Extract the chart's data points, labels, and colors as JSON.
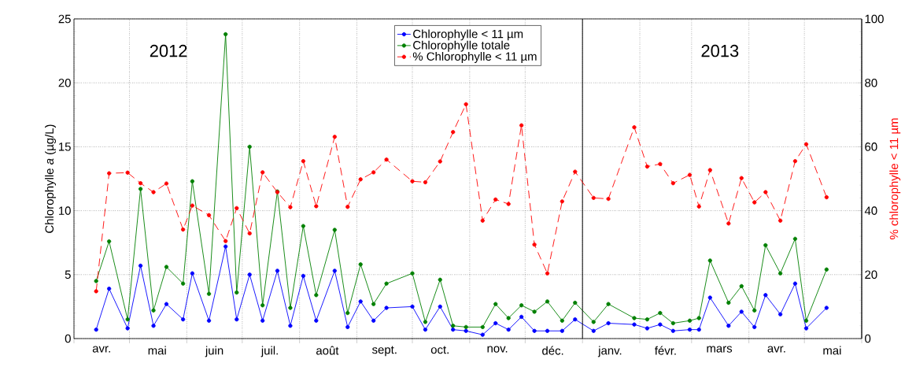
{
  "chart_data": {
    "type": "line",
    "ylabel": "Chlorophylle *a* (µg/L)",
    "y2label": "% chlorophylle < 11 µm",
    "annotations": [
      "2012",
      "2013"
    ],
    "x": [
      "2012-04-13",
      "2012-04-20",
      "2012-04-30",
      "2012-05-07",
      "2012-05-14",
      "2012-05-21",
      "2012-05-30",
      "2012-06-04",
      "2012-06-13",
      "2012-06-22",
      "2012-06-28",
      "2012-07-05",
      "2012-07-12",
      "2012-07-20",
      "2012-07-27",
      "2012-08-03",
      "2012-08-10",
      "2012-08-20",
      "2012-08-27",
      "2012-09-03",
      "2012-09-10",
      "2012-09-17",
      "2012-10-01",
      "2012-10-08",
      "2012-10-16",
      "2012-10-23",
      "2012-10-30",
      "2012-11-08",
      "2012-11-15",
      "2012-11-22",
      "2012-11-29",
      "2012-12-06",
      "2012-12-13",
      "2012-12-21",
      "2012-12-28",
      "2013-01-07",
      "2013-01-15",
      "2013-01-29",
      "2013-02-05",
      "2013-02-12",
      "2013-02-19",
      "2013-02-28",
      "2013-03-05",
      "2013-03-11",
      "2013-03-21",
      "2013-03-28",
      "2013-04-04",
      "2013-04-10",
      "2013-04-18",
      "2013-04-26",
      "2013-05-02",
      "2013-05-13"
    ],
    "series": [
      {
        "name": "Chlorophylle  < 11 µm",
        "color": "#0000ff",
        "values": [
          0.7,
          3.9,
          0.8,
          5.7,
          1.0,
          2.7,
          1.5,
          5.1,
          1.4,
          7.2,
          1.5,
          5.0,
          1.4,
          5.3,
          1.0,
          4.9,
          1.4,
          5.3,
          0.9,
          2.9,
          1.4,
          2.4,
          2.5,
          0.7,
          2.5,
          0.7,
          0.6,
          0.3,
          1.2,
          0.7,
          1.7,
          0.6,
          0.6,
          0.6,
          1.5,
          0.6,
          1.2,
          1.1,
          0.8,
          1.1,
          0.6,
          0.7,
          0.7,
          3.2,
          1.0,
          2.1,
          0.9,
          3.4,
          1.9,
          4.3,
          0.8,
          2.4
        ]
      },
      {
        "name": "Chlorophylle totale",
        "color": "#008000",
        "values": [
          4.5,
          7.6,
          1.5,
          11.7,
          2.2,
          5.6,
          4.3,
          12.3,
          3.5,
          23.8,
          3.6,
          15.0,
          2.6,
          11.5,
          2.4,
          8.8,
          3.4,
          8.5,
          2.0,
          5.8,
          2.7,
          4.3,
          5.1,
          1.3,
          4.6,
          1.0,
          0.9,
          0.9,
          2.7,
          1.6,
          2.6,
          2.1,
          2.9,
          1.4,
          2.8,
          1.3,
          2.7,
          1.6,
          1.5,
          2.0,
          1.2,
          1.4,
          1.6,
          6.1,
          2.8,
          4.1,
          2.2,
          7.3,
          5.1,
          7.8,
          1.4,
          5.4
        ]
      },
      {
        "name": "% Chlorophylle < 11 µm",
        "color": "#ff0000",
        "axis": "y2",
        "line_style": "dashed",
        "values": [
          14.8,
          51.7,
          51.9,
          48.6,
          45.8,
          48.5,
          34.1,
          41.6,
          38.6,
          30.5,
          40.8,
          32.9,
          52.0,
          45.8,
          41.1,
          55.5,
          41.4,
          63.1,
          41.2,
          49.8,
          52.0,
          56.0,
          49.2,
          48.9,
          55.4,
          64.6,
          73.3,
          36.9,
          43.5,
          42.1,
          66.7,
          29.4,
          20.4,
          42.9,
          52.2,
          44.0,
          43.7,
          66.1,
          53.8,
          54.6,
          48.6,
          51.2,
          41.3,
          52.7,
          36.0,
          50.2,
          42.6,
          45.8,
          36.9,
          55.5,
          60.8,
          44.2
        ]
      }
    ],
    "xlim": [
      "2012-04-01",
      "2013-06-01"
    ],
    "xticks": [
      {
        "value": "2012-04-01",
        "label": null
      },
      {
        "value": "2012-04-16",
        "label": "avr."
      },
      {
        "value": "2012-05-01",
        "label": null
      },
      {
        "value": "2012-05-16",
        "label": "mai"
      },
      {
        "value": "2012-06-01",
        "label": null
      },
      {
        "value": "2012-06-16",
        "label": "juin"
      },
      {
        "value": "2012-07-01",
        "label": null
      },
      {
        "value": "2012-07-16",
        "label": "juil."
      },
      {
        "value": "2012-08-01",
        "label": null
      },
      {
        "value": "2012-08-16",
        "label": "août"
      },
      {
        "value": "2012-09-01",
        "label": null
      },
      {
        "value": "2012-09-16",
        "label": "sept."
      },
      {
        "value": "2012-10-01",
        "label": null
      },
      {
        "value": "2012-10-16",
        "label": "oct."
      },
      {
        "value": "2012-11-01",
        "label": null
      },
      {
        "value": "2012-11-16",
        "label": "nov."
      },
      {
        "value": "2012-12-01",
        "label": null
      },
      {
        "value": "2012-12-16",
        "label": "déc."
      },
      {
        "value": "2013-01-01",
        "label": null
      },
      {
        "value": "2013-01-16",
        "label": "janv."
      },
      {
        "value": "2013-02-01",
        "label": null
      },
      {
        "value": "2013-02-15",
        "label": "févr."
      },
      {
        "value": "2013-03-01",
        "label": null
      },
      {
        "value": "2013-03-16",
        "label": "mars"
      },
      {
        "value": "2013-04-01",
        "label": null
      },
      {
        "value": "2013-04-16",
        "label": "avr."
      },
      {
        "value": "2013-05-01",
        "label": null
      },
      {
        "value": "2013-05-16",
        "label": "mai"
      },
      {
        "value": "2013-06-01",
        "label": null
      }
    ],
    "ylim": [
      0,
      25
    ],
    "yticks": [
      0,
      5,
      10,
      15,
      20,
      25
    ],
    "y2lim": [
      0,
      100
    ],
    "y2ticks": [
      0,
      20,
      40,
      60,
      80,
      100
    ],
    "ref_lines": [
      {
        "axis": "x",
        "value": "2013-01-01",
        "color": "#000000",
        "line_style": "solid"
      }
    ],
    "grid": true,
    "legend": "top",
    "marker": "circle",
    "line_style": "solid"
  }
}
